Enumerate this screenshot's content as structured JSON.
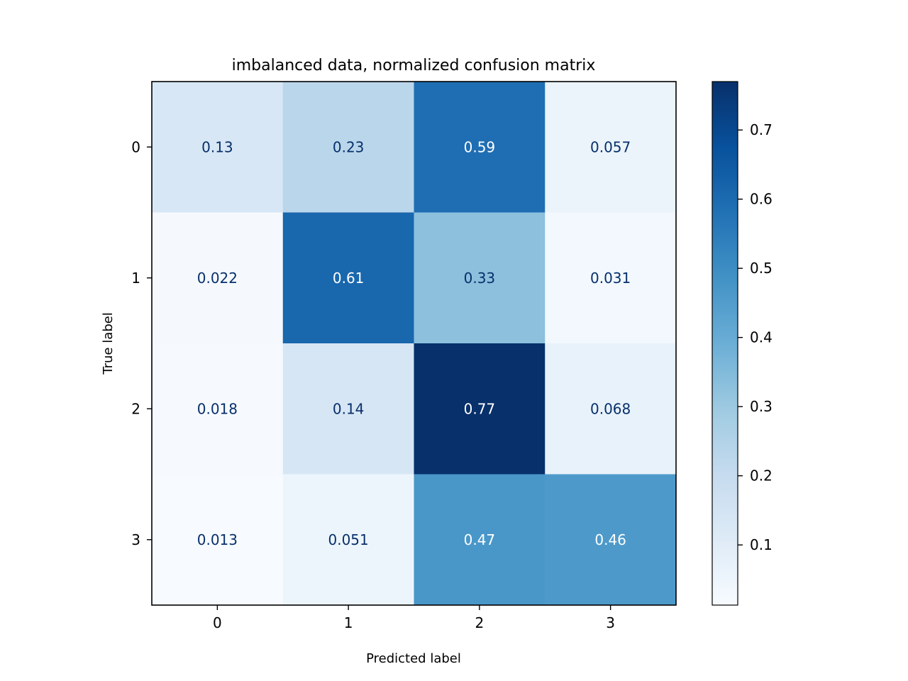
{
  "chart_data": {
    "type": "heatmap",
    "title": "imbalanced data, normalized confusion matrix",
    "xlabel": "Predicted label",
    "ylabel": "True label",
    "x_categories": [
      "0",
      "1",
      "2",
      "3"
    ],
    "y_categories": [
      "0",
      "1",
      "2",
      "3"
    ],
    "values": [
      [
        0.13,
        0.23,
        0.59,
        0.057
      ],
      [
        0.022,
        0.61,
        0.33,
        0.031
      ],
      [
        0.018,
        0.14,
        0.77,
        0.068
      ],
      [
        0.013,
        0.051,
        0.47,
        0.46
      ]
    ],
    "cell_labels": [
      [
        "0.13",
        "0.23",
        "0.59",
        "0.057"
      ],
      [
        "0.022",
        "0.61",
        "0.33",
        "0.031"
      ],
      [
        "0.018",
        "0.14",
        "0.77",
        "0.068"
      ],
      [
        "0.013",
        "0.051",
        "0.47",
        "0.46"
      ]
    ],
    "colormap": "Blues",
    "color_range": [
      0.013,
      0.77
    ],
    "colorbar_ticks": [
      "0.1",
      "0.2",
      "0.3",
      "0.4",
      "0.5",
      "0.6",
      "0.7"
    ],
    "colorbar_tick_values": [
      0.1,
      0.2,
      0.3,
      0.4,
      0.5,
      0.6,
      0.7
    ],
    "text_color_dark": "#08306b",
    "text_color_light": "#ffffff"
  }
}
